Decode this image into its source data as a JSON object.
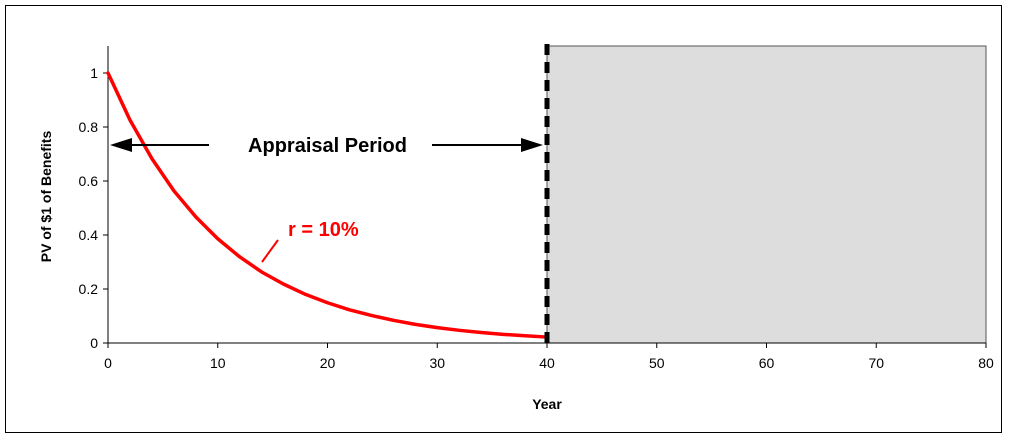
{
  "chart_data": {
    "type": "line",
    "xlabel": "Year",
    "ylabel": "PV of $1 of Benefits",
    "xlim": [
      0,
      80
    ],
    "ylim": [
      0,
      1.1
    ],
    "x_ticks": [
      "0",
      "10",
      "20",
      "30",
      "40",
      "50",
      "60",
      "70",
      "80"
    ],
    "y_ticks": [
      "0",
      "0.2",
      "0.4",
      "0.6",
      "0.8",
      "1"
    ],
    "series": [
      {
        "name": "r = 10%",
        "color": "#ff0000",
        "x": [
          0,
          2,
          4,
          6,
          8,
          10,
          12,
          14,
          16,
          18,
          20,
          22,
          24,
          26,
          28,
          30,
          32,
          34,
          36,
          38,
          40
        ],
        "y": [
          1.0,
          0.826,
          0.683,
          0.564,
          0.467,
          0.386,
          0.319,
          0.263,
          0.218,
          0.18,
          0.149,
          0.123,
          0.102,
          0.084,
          0.069,
          0.057,
          0.047,
          0.039,
          0.032,
          0.027,
          0.022
        ]
      }
    ],
    "shaded_region": {
      "x": [
        40,
        80
      ],
      "color": "#dddddd"
    },
    "cutoff_line": {
      "x": 40,
      "style": "dashed",
      "color": "#000000"
    },
    "annotations": {
      "appraisal_period": "Appraisal Period",
      "rate_label": "r = 10%"
    },
    "grid": false,
    "legend": "none"
  }
}
